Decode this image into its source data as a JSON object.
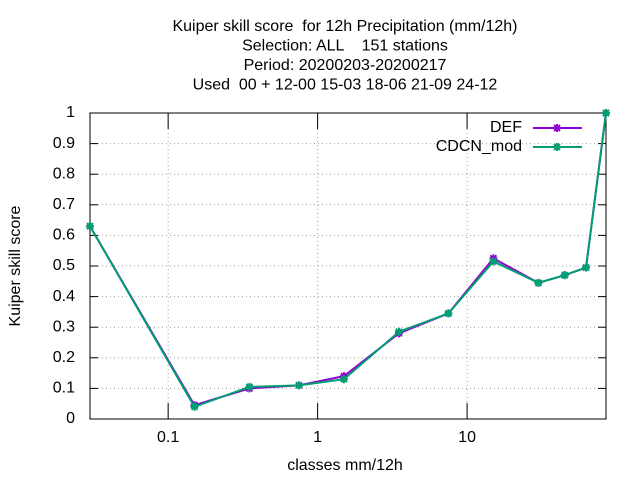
{
  "chart_data": {
    "type": "line",
    "title": [
      "Kuiper skill score  for 12h Precipitation (mm/12h)",
      "Selection: ALL    151 stations",
      "Period: 20200203-20200217",
      "Used  00 + 12-00 15-03 18-06 21-09 24-12"
    ],
    "x_label": "classes mm/12h",
    "y_label": "Kuiper skill score",
    "x": [
      0.03,
      0.15,
      0.35,
      0.75,
      1.5,
      3.5,
      7.5,
      15,
      30,
      45,
      62.5,
      85
    ],
    "series": [
      {
        "name": "DEF",
        "color": "#9400d3",
        "values": [
          0.63,
          0.045,
          0.1,
          0.11,
          0.14,
          0.28,
          0.345,
          0.525,
          0.445,
          0.47,
          0.495,
          1.0
        ]
      },
      {
        "name": "CDCN_mod",
        "color": "#009e73",
        "values": [
          0.63,
          0.04,
          0.105,
          0.11,
          0.13,
          0.285,
          0.345,
          0.515,
          0.445,
          0.47,
          0.495,
          1.0
        ]
      }
    ],
    "xlim": [
      0.03,
      85
    ],
    "xscale": "log",
    "xticks": [
      0.1,
      1,
      10
    ],
    "ylim": [
      0,
      1
    ],
    "yticks": [
      0,
      0.1,
      0.2,
      0.3,
      0.4,
      0.5,
      0.6,
      0.7,
      0.8,
      0.9,
      1
    ],
    "grid": true,
    "legend": "upper right"
  }
}
